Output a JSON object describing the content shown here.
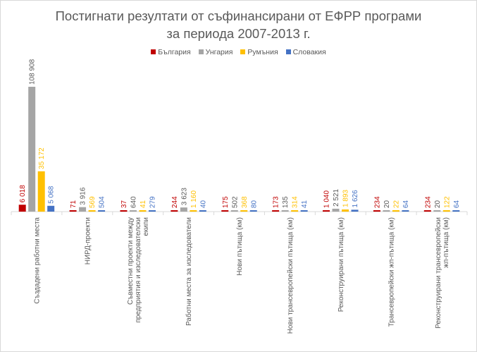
{
  "chart_data": {
    "type": "bar",
    "title_line1": "Постигнати резултати от съфинансирани от ЕФРР програми",
    "title_line2": "за периода 2007-2013 г.",
    "categories": [
      [
        "Създадени работни места"
      ],
      [
        "НИРД-проекти"
      ],
      [
        "Съвместни проекти между",
        "предприятия и изследователски",
        "екипи"
      ],
      [
        "Работни места за изследователи"
      ],
      [
        "Нови пътища (км)"
      ],
      [
        "Нови трансевропейски пътища (км)"
      ],
      [
        "Реконструирани пътища (км)"
      ],
      [
        "Трансевропейски жп-пътища (км)"
      ],
      [
        "Реконструирани трансевропейски",
        "жп-пътища (км)"
      ]
    ],
    "series": [
      {
        "name": "България",
        "color": "#c00000",
        "values": [
          6018,
          71,
          37,
          244,
          175,
          173,
          1040,
          234,
          234
        ],
        "labels": [
          "6 018",
          "71",
          "37",
          "244",
          "175",
          "173",
          "1 040",
          "234",
          "234"
        ]
      },
      {
        "name": "Унгария",
        "color": "#a5a5a5",
        "values": [
          108908,
          3916,
          640,
          3623,
          502,
          135,
          2521,
          20,
          20
        ],
        "labels": [
          "108 908",
          "3 916",
          "640",
          "3 623",
          "502",
          "135",
          "2 521",
          "20",
          "20"
        ]
      },
      {
        "name": "Румъния",
        "color": "#ffc000",
        "values": [
          35172,
          569,
          41,
          1160,
          368,
          314,
          1893,
          22,
          122
        ],
        "labels": [
          "35 172",
          "569",
          "41",
          "1 160",
          "368",
          "314",
          "1 893",
          "22",
          "122"
        ]
      },
      {
        "name": "Словакия",
        "color": "#4472c4",
        "values": [
          5068,
          504,
          279,
          40,
          80,
          41,
          1626,
          64,
          64
        ],
        "labels": [
          "5 068",
          "504",
          "279",
          "40",
          "80",
          "41",
          "1 626",
          "64",
          "64"
        ]
      }
    ],
    "ylim": [
      0,
      108908
    ],
    "grid": false,
    "legend_position": "top",
    "data_labels": "rotated-vertical"
  }
}
